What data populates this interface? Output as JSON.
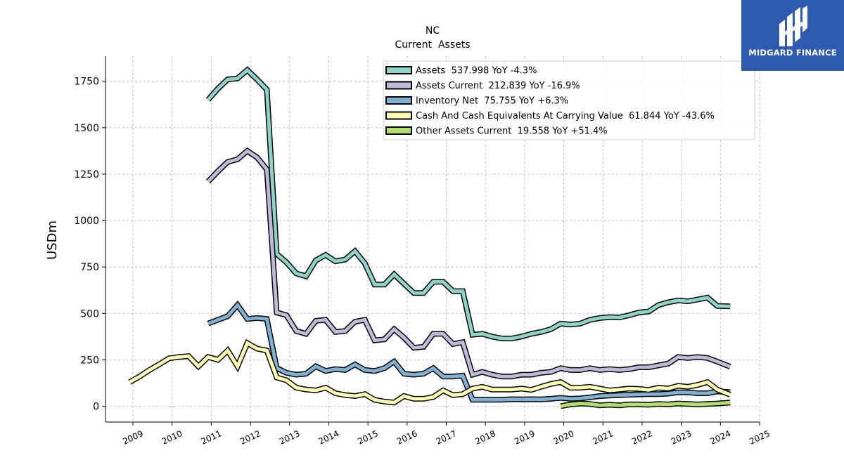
{
  "brand": {
    "name": "MIDGARD FINANCE",
    "logo_icon": "midgard-logo-icon",
    "bg_color": "#2e5bb0"
  },
  "chart_data": {
    "type": "line",
    "title": "NC",
    "subtitle": "Current  Assets",
    "ylabel": "USDm",
    "xlabel": "",
    "xlim": [
      2008.3,
      2025.0
    ],
    "ylim": [
      -85,
      1885
    ],
    "yticks": [
      0,
      250,
      500,
      750,
      1000,
      1250,
      1500,
      1750
    ],
    "xticks": [
      2009,
      2010,
      2011,
      2012,
      2013,
      2014,
      2015,
      2016,
      2017,
      2018,
      2019,
      2020,
      2021,
      2022,
      2023,
      2024,
      2025
    ],
    "grid": true,
    "legend_position": "top-right",
    "series": [
      {
        "name": "Assets",
        "legend": "Assets  537.998 YoY -4.3%",
        "color": "#8dd3c7",
        "points": [
          [
            2010.92,
            1650
          ],
          [
            2011.17,
            1710
          ],
          [
            2011.42,
            1760
          ],
          [
            2011.67,
            1765
          ],
          [
            2011.92,
            1810
          ],
          [
            2012.17,
            1760
          ],
          [
            2012.42,
            1705
          ],
          [
            2012.67,
            820
          ],
          [
            2012.92,
            775
          ],
          [
            2013.17,
            715
          ],
          [
            2013.42,
            700
          ],
          [
            2013.67,
            785
          ],
          [
            2013.92,
            815
          ],
          [
            2014.17,
            780
          ],
          [
            2014.42,
            790
          ],
          [
            2014.67,
            835
          ],
          [
            2014.92,
            770
          ],
          [
            2015.17,
            655
          ],
          [
            2015.42,
            655
          ],
          [
            2015.67,
            710
          ],
          [
            2015.92,
            660
          ],
          [
            2016.17,
            610
          ],
          [
            2016.42,
            610
          ],
          [
            2016.67,
            670
          ],
          [
            2016.92,
            670
          ],
          [
            2017.17,
            620
          ],
          [
            2017.42,
            620
          ],
          [
            2017.67,
            385
          ],
          [
            2017.92,
            390
          ],
          [
            2018.17,
            375
          ],
          [
            2018.42,
            365
          ],
          [
            2018.67,
            365
          ],
          [
            2018.92,
            375
          ],
          [
            2019.17,
            390
          ],
          [
            2019.42,
            400
          ],
          [
            2019.67,
            415
          ],
          [
            2019.92,
            445
          ],
          [
            2020.17,
            440
          ],
          [
            2020.42,
            445
          ],
          [
            2020.67,
            465
          ],
          [
            2020.92,
            475
          ],
          [
            2021.17,
            480
          ],
          [
            2021.42,
            478
          ],
          [
            2021.67,
            490
          ],
          [
            2021.92,
            505
          ],
          [
            2022.17,
            510
          ],
          [
            2022.42,
            545
          ],
          [
            2022.67,
            560
          ],
          [
            2022.92,
            570
          ],
          [
            2023.17,
            565
          ],
          [
            2023.42,
            575
          ],
          [
            2023.67,
            585
          ],
          [
            2023.92,
            540
          ],
          [
            2024.25,
            538
          ]
        ]
      },
      {
        "name": "Assets Current",
        "legend": "Assets Current  212.839 YoY -16.9%",
        "color": "#bebada",
        "points": [
          [
            2010.92,
            1210
          ],
          [
            2011.17,
            1265
          ],
          [
            2011.42,
            1315
          ],
          [
            2011.67,
            1330
          ],
          [
            2011.92,
            1375
          ],
          [
            2012.17,
            1340
          ],
          [
            2012.42,
            1275
          ],
          [
            2012.67,
            505
          ],
          [
            2012.92,
            490
          ],
          [
            2013.17,
            405
          ],
          [
            2013.42,
            390
          ],
          [
            2013.67,
            460
          ],
          [
            2013.92,
            465
          ],
          [
            2014.17,
            400
          ],
          [
            2014.42,
            405
          ],
          [
            2014.67,
            455
          ],
          [
            2014.92,
            465
          ],
          [
            2015.17,
            355
          ],
          [
            2015.42,
            360
          ],
          [
            2015.67,
            415
          ],
          [
            2015.92,
            370
          ],
          [
            2016.17,
            315
          ],
          [
            2016.42,
            320
          ],
          [
            2016.67,
            390
          ],
          [
            2016.92,
            390
          ],
          [
            2017.17,
            335
          ],
          [
            2017.42,
            345
          ],
          [
            2017.67,
            170
          ],
          [
            2017.92,
            185
          ],
          [
            2018.17,
            170
          ],
          [
            2018.42,
            160
          ],
          [
            2018.67,
            160
          ],
          [
            2018.92,
            170
          ],
          [
            2019.17,
            170
          ],
          [
            2019.42,
            180
          ],
          [
            2019.67,
            185
          ],
          [
            2019.92,
            205
          ],
          [
            2020.17,
            195
          ],
          [
            2020.42,
            195
          ],
          [
            2020.67,
            205
          ],
          [
            2020.92,
            195
          ],
          [
            2021.17,
            200
          ],
          [
            2021.42,
            195
          ],
          [
            2021.67,
            200
          ],
          [
            2021.92,
            210
          ],
          [
            2022.17,
            210
          ],
          [
            2022.42,
            220
          ],
          [
            2022.67,
            230
          ],
          [
            2022.92,
            265
          ],
          [
            2023.17,
            260
          ],
          [
            2023.42,
            265
          ],
          [
            2023.67,
            260
          ],
          [
            2023.92,
            240
          ],
          [
            2024.25,
            213
          ]
        ]
      },
      {
        "name": "Inventory Net",
        "legend": "Inventory Net  75.755 YoY +6.3%",
        "color": "#80b1d3",
        "points": [
          [
            2010.92,
            445
          ],
          [
            2011.17,
            465
          ],
          [
            2011.42,
            485
          ],
          [
            2011.67,
            545
          ],
          [
            2011.92,
            470
          ],
          [
            2012.17,
            475
          ],
          [
            2012.42,
            470
          ],
          [
            2012.67,
            205
          ],
          [
            2012.92,
            180
          ],
          [
            2013.17,
            170
          ],
          [
            2013.42,
            175
          ],
          [
            2013.67,
            215
          ],
          [
            2013.92,
            190
          ],
          [
            2014.17,
            200
          ],
          [
            2014.42,
            195
          ],
          [
            2014.67,
            225
          ],
          [
            2014.92,
            195
          ],
          [
            2015.17,
            190
          ],
          [
            2015.42,
            205
          ],
          [
            2015.67,
            240
          ],
          [
            2015.92,
            175
          ],
          [
            2016.17,
            170
          ],
          [
            2016.42,
            175
          ],
          [
            2016.67,
            205
          ],
          [
            2016.92,
            160
          ],
          [
            2017.17,
            160
          ],
          [
            2017.42,
            165
          ],
          [
            2017.67,
            35
          ],
          [
            2017.92,
            35
          ],
          [
            2018.17,
            35
          ],
          [
            2018.42,
            35
          ],
          [
            2018.67,
            38
          ],
          [
            2018.92,
            37
          ],
          [
            2019.17,
            38
          ],
          [
            2019.42,
            37
          ],
          [
            2019.67,
            40
          ],
          [
            2019.92,
            45
          ],
          [
            2020.17,
            40
          ],
          [
            2020.42,
            42
          ],
          [
            2020.67,
            48
          ],
          [
            2020.92,
            55
          ],
          [
            2021.17,
            58
          ],
          [
            2021.42,
            60
          ],
          [
            2021.67,
            62
          ],
          [
            2021.92,
            64
          ],
          [
            2022.17,
            65
          ],
          [
            2022.42,
            65
          ],
          [
            2022.67,
            68
          ],
          [
            2022.92,
            75
          ],
          [
            2023.17,
            75
          ],
          [
            2023.42,
            70
          ],
          [
            2023.67,
            70
          ],
          [
            2023.92,
            80
          ],
          [
            2024.25,
            76
          ]
        ]
      },
      {
        "name": "Cash And Cash Equivalents At Carrying Value",
        "legend": "Cash And Cash Equivalents At Carrying Value  61.844 YoY -43.6%",
        "color": "#ffffb3",
        "points": [
          [
            2008.92,
            130
          ],
          [
            2009.17,
            160
          ],
          [
            2009.42,
            195
          ],
          [
            2009.67,
            225
          ],
          [
            2009.92,
            258
          ],
          [
            2010.17,
            265
          ],
          [
            2010.42,
            270
          ],
          [
            2010.67,
            215
          ],
          [
            2010.92,
            265
          ],
          [
            2011.17,
            250
          ],
          [
            2011.42,
            300
          ],
          [
            2011.67,
            215
          ],
          [
            2011.92,
            340
          ],
          [
            2012.17,
            310
          ],
          [
            2012.42,
            300
          ],
          [
            2012.67,
            155
          ],
          [
            2012.92,
            140
          ],
          [
            2013.17,
            100
          ],
          [
            2013.42,
            90
          ],
          [
            2013.67,
            85
          ],
          [
            2013.92,
            100
          ],
          [
            2014.17,
            70
          ],
          [
            2014.42,
            60
          ],
          [
            2014.67,
            55
          ],
          [
            2014.92,
            65
          ],
          [
            2015.17,
            35
          ],
          [
            2015.42,
            25
          ],
          [
            2015.67,
            20
          ],
          [
            2015.92,
            55
          ],
          [
            2016.17,
            40
          ],
          [
            2016.42,
            40
          ],
          [
            2016.67,
            50
          ],
          [
            2016.92,
            85
          ],
          [
            2017.17,
            60
          ],
          [
            2017.42,
            65
          ],
          [
            2017.67,
            95
          ],
          [
            2017.92,
            105
          ],
          [
            2018.17,
            90
          ],
          [
            2018.42,
            90
          ],
          [
            2018.67,
            90
          ],
          [
            2018.92,
            95
          ],
          [
            2019.17,
            88
          ],
          [
            2019.42,
            105
          ],
          [
            2019.67,
            120
          ],
          [
            2019.92,
            130
          ],
          [
            2020.17,
            100
          ],
          [
            2020.42,
            100
          ],
          [
            2020.67,
            105
          ],
          [
            2020.92,
            95
          ],
          [
            2021.17,
            85
          ],
          [
            2021.42,
            90
          ],
          [
            2021.67,
            95
          ],
          [
            2021.92,
            93
          ],
          [
            2022.17,
            88
          ],
          [
            2022.42,
            100
          ],
          [
            2022.67,
            95
          ],
          [
            2022.92,
            110
          ],
          [
            2023.17,
            105
          ],
          [
            2023.42,
            115
          ],
          [
            2023.67,
            130
          ],
          [
            2023.92,
            90
          ],
          [
            2024.25,
            62
          ]
        ]
      },
      {
        "name": "Other Assets Current",
        "legend": "Other Assets Current  19.558 YoY +51.4%",
        "color": "#b3de69",
        "points": [
          [
            2019.92,
            0
          ],
          [
            2020.17,
            10
          ],
          [
            2020.42,
            15
          ],
          [
            2020.67,
            12
          ],
          [
            2020.92,
            5
          ],
          [
            2021.17,
            8
          ],
          [
            2021.42,
            5
          ],
          [
            2021.67,
            10
          ],
          [
            2021.92,
            10
          ],
          [
            2022.17,
            8
          ],
          [
            2022.42,
            12
          ],
          [
            2022.67,
            10
          ],
          [
            2022.92,
            15
          ],
          [
            2023.17,
            12
          ],
          [
            2023.42,
            10
          ],
          [
            2023.67,
            12
          ],
          [
            2023.92,
            15
          ],
          [
            2024.25,
            20
          ]
        ]
      }
    ]
  }
}
